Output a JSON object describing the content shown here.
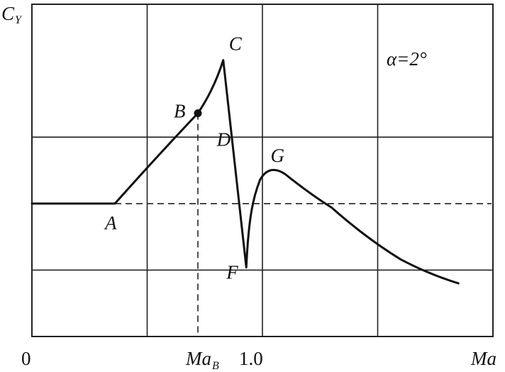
{
  "chart_data": {
    "type": "line",
    "ylabel_main": "C",
    "ylabel_sub": "Y",
    "xlabel": "Ma",
    "origin_label": "0",
    "x_tick_label_mab_main": "Ma",
    "x_tick_label_mab_sub": "B",
    "x_tick_label_one": "1.0",
    "annotation": "α=2°",
    "series": [
      {
        "values": [
          {
            "x": 0.0,
            "y": 0.0
          },
          {
            "x": 0.36,
            "y": 0.0
          },
          {
            "x": 0.55,
            "y": 0.38
          },
          {
            "x": 0.72,
            "y": 0.68
          },
          {
            "x": 0.83,
            "y": 1.08
          },
          {
            "x": 0.93,
            "y": -0.48
          },
          {
            "x": 0.96,
            "y": 0.05
          },
          {
            "x": 1.03,
            "y": 0.26
          },
          {
            "x": 1.1,
            "y": 0.22
          },
          {
            "x": 1.3,
            "y": -0.03
          },
          {
            "x": 1.6,
            "y": -0.42
          },
          {
            "x": 1.85,
            "y": -0.6
          }
        ]
      }
    ],
    "points": [
      {
        "label": "A",
        "x": 0.36,
        "y": 0.0
      },
      {
        "label": "B",
        "x": 0.72,
        "y": 0.68
      },
      {
        "label": "C",
        "x": 0.83,
        "y": 1.08
      },
      {
        "label": "D",
        "x": 0.885,
        "y": 0.36
      },
      {
        "label": "F",
        "x": 0.93,
        "y": -0.48
      },
      {
        "label": "G",
        "x": 1.06,
        "y": 0.26
      }
    ],
    "xlim": [
      0,
      2.0
    ],
    "ylim": [
      -1.0,
      1.5
    ],
    "grid": true
  }
}
